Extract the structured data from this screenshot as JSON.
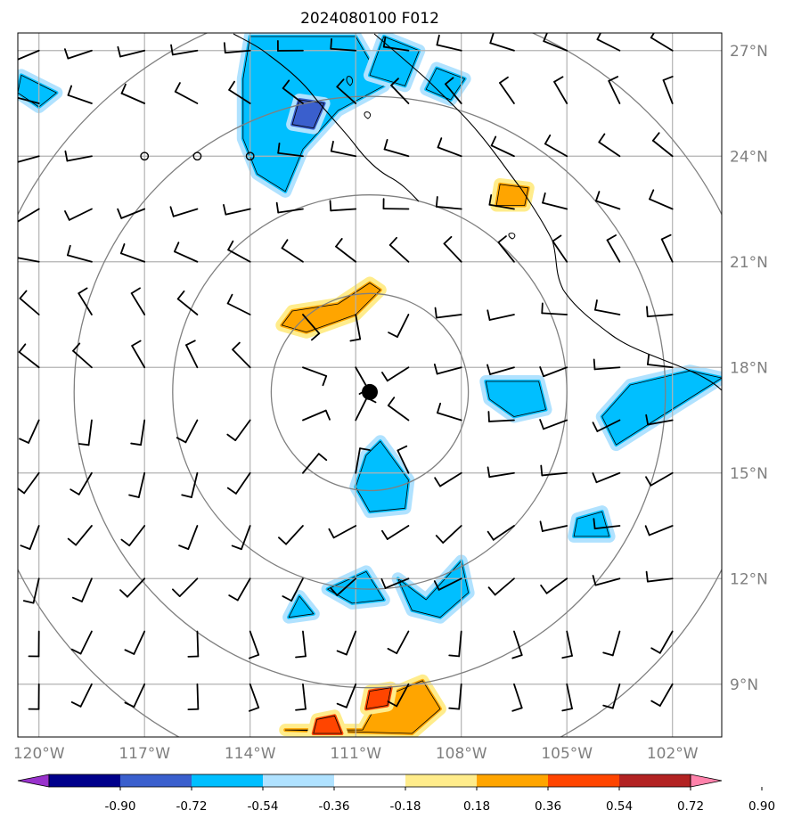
{
  "chart_data": {
    "type": "map_contour",
    "title": "2024080100 F012",
    "xlabel": "",
    "ylabel": "",
    "lon_ticks": [
      "120°W",
      "117°W",
      "114°W",
      "111°W",
      "108°W",
      "105°W",
      "102°W"
    ],
    "lat_ticks": [
      "27°N",
      "24°N",
      "21°N",
      "18°N",
      "15°N",
      "12°N",
      "9°N"
    ],
    "lon_values": [
      -120,
      -117,
      -114,
      -111,
      -108,
      -105,
      -102
    ],
    "lat_values": [
      27,
      24,
      21,
      18,
      15,
      12,
      9
    ],
    "xlim": [
      -120.6,
      -100.6
    ],
    "ylim": [
      7.5,
      27.5
    ],
    "grid": true,
    "storm_center": {
      "lon": -110.6,
      "lat": 17.3
    },
    "range_rings_deg": [
      2.8,
      5.6,
      8.4,
      11.2
    ],
    "colorbar": {
      "levels": [
        "-0.90",
        "-0.72",
        "-0.54",
        "-0.36",
        "-0.18",
        "0.18",
        "0.36",
        "0.54",
        "0.72",
        "0.90"
      ],
      "level_values": [
        -0.9,
        -0.72,
        -0.54,
        -0.36,
        -0.18,
        0.18,
        0.36,
        0.54,
        0.72,
        0.9
      ],
      "colors": [
        "#9932CC",
        "#00008B",
        "#3A5FCD",
        "#00BFFF",
        "#B0E2FF",
        "#FFFFFF",
        "#FFEC8B",
        "#FFA500",
        "#FF4500",
        "#B22222",
        "#FF82AB"
      ],
      "extend": "both"
    },
    "negative_regions": [
      {
        "level": "-0.36",
        "points": [
          [
            -114.0,
            27.4
          ],
          [
            -111.0,
            27.4
          ],
          [
            -110.2,
            26.0
          ],
          [
            -111.5,
            25.3
          ],
          [
            -112.5,
            24.2
          ],
          [
            -113.0,
            23.0
          ],
          [
            -113.8,
            23.5
          ],
          [
            -114.2,
            24.5
          ],
          [
            -114.2,
            26.2
          ]
        ]
      },
      {
        "level": "-0.36",
        "points": [
          [
            -110.2,
            27.4
          ],
          [
            -109.2,
            27.0
          ],
          [
            -109.6,
            26.0
          ],
          [
            -110.6,
            26.3
          ]
        ]
      },
      {
        "level": "-0.36",
        "points": [
          [
            -108.7,
            26.5
          ],
          [
            -107.9,
            26.2
          ],
          [
            -108.3,
            25.6
          ],
          [
            -109.0,
            25.9
          ]
        ]
      },
      {
        "level": "-0.36",
        "points": [
          [
            -120.5,
            26.3
          ],
          [
            -119.5,
            25.8
          ],
          [
            -120.0,
            25.4
          ],
          [
            -120.6,
            25.8
          ]
        ]
      },
      {
        "level": "-0.36",
        "points": [
          [
            -110.3,
            15.9
          ],
          [
            -109.5,
            14.8
          ],
          [
            -109.6,
            14.0
          ],
          [
            -110.6,
            13.9
          ],
          [
            -111.0,
            14.6
          ],
          [
            -110.7,
            15.5
          ]
        ]
      },
      {
        "level": "-0.36",
        "points": [
          [
            -107.3,
            17.6
          ],
          [
            -105.8,
            17.6
          ],
          [
            -105.6,
            16.8
          ],
          [
            -106.5,
            16.6
          ],
          [
            -107.2,
            17.1
          ]
        ]
      },
      {
        "level": "-0.36",
        "points": [
          [
            -103.2,
            17.5
          ],
          [
            -101.5,
            17.9
          ],
          [
            -100.6,
            17.7
          ],
          [
            -102.5,
            16.5
          ],
          [
            -103.6,
            15.8
          ],
          [
            -104.0,
            16.6
          ]
        ]
      },
      {
        "level": "-0.36",
        "points": [
          [
            -108.0,
            12.5
          ],
          [
            -107.8,
            11.6
          ],
          [
            -108.6,
            10.9
          ],
          [
            -109.4,
            11.1
          ],
          [
            -109.8,
            12.0
          ],
          [
            -109.0,
            11.4
          ]
        ]
      },
      {
        "level": "-0.36",
        "points": [
          [
            -110.7,
            12.2
          ],
          [
            -110.2,
            11.4
          ],
          [
            -111.1,
            11.3
          ],
          [
            -111.8,
            11.7
          ]
        ]
      },
      {
        "level": "-0.36",
        "points": [
          [
            -112.6,
            11.5
          ],
          [
            -112.2,
            11.0
          ],
          [
            -112.9,
            10.9
          ]
        ]
      },
      {
        "level": "-0.36",
        "points": [
          [
            -104.7,
            13.7
          ],
          [
            -104.0,
            13.9
          ],
          [
            -103.8,
            13.2
          ],
          [
            -104.8,
            13.2
          ]
        ]
      },
      {
        "level": "-0.54",
        "points": [
          [
            -112.6,
            25.6
          ],
          [
            -111.9,
            25.5
          ],
          [
            -112.2,
            24.8
          ],
          [
            -112.8,
            24.9
          ]
        ]
      }
    ],
    "positive_regions": [
      {
        "level": "0.36",
        "points": [
          [
            -112.8,
            19.6
          ],
          [
            -111.5,
            19.8
          ],
          [
            -110.6,
            20.4
          ],
          [
            -110.3,
            20.2
          ],
          [
            -111.0,
            19.5
          ],
          [
            -112.4,
            19.0
          ],
          [
            -113.1,
            19.2
          ]
        ]
      },
      {
        "level": "0.36",
        "points": [
          [
            -106.9,
            23.2
          ],
          [
            -106.1,
            23.1
          ],
          [
            -106.2,
            22.6
          ],
          [
            -107.0,
            22.6
          ]
        ]
      },
      {
        "level": "0.36",
        "points": [
          [
            -113.0,
            7.7
          ],
          [
            -110.8,
            7.7
          ],
          [
            -110.3,
            8.6
          ],
          [
            -109.1,
            9.1
          ],
          [
            -108.6,
            8.3
          ],
          [
            -109.4,
            7.6
          ]
        ]
      },
      {
        "level": "0.54",
        "points": [
          [
            -110.6,
            8.8
          ],
          [
            -110.0,
            8.9
          ],
          [
            -110.1,
            8.4
          ],
          [
            -110.7,
            8.3
          ]
        ]
      },
      {
        "level": "0.54",
        "points": [
          [
            -112.2,
            7.6
          ],
          [
            -111.4,
            7.6
          ],
          [
            -111.6,
            8.1
          ],
          [
            -112.1,
            8.0
          ]
        ]
      }
    ]
  }
}
